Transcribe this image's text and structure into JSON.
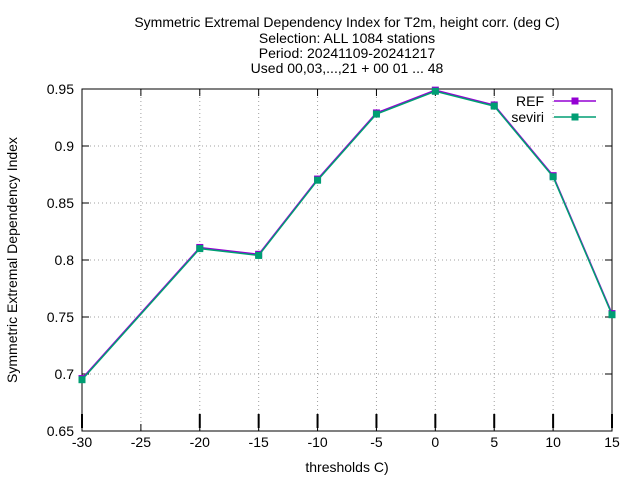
{
  "chart_data": {
    "type": "line",
    "title_lines": [
      "Symmetric Extremal Dependency Index  for T2m, height corr. (deg C)",
      "Selection: ALL    1084 stations",
      "Period: 20241109-20241217",
      "Used 00,03,...,21 + 00 01 ... 48"
    ],
    "xlabel": "thresholds C)",
    "ylabel": "Symmetric Extremal Dependency Index",
    "x": [
      -30,
      -20,
      -15,
      -10,
      -5,
      0,
      5,
      10,
      15
    ],
    "xlim": [
      -30,
      15
    ],
    "ylim": [
      0.65,
      0.95
    ],
    "xticks": [
      -30,
      -25,
      -20,
      -15,
      -10,
      -5,
      0,
      5,
      10,
      15
    ],
    "yticks": [
      0.65,
      0.7,
      0.75,
      0.8,
      0.85,
      0.9,
      0.95
    ],
    "grid": true,
    "legend_position": "top-right",
    "series": [
      {
        "name": "REF",
        "color": "#9400d3",
        "values": [
          0.696,
          0.811,
          0.805,
          0.871,
          0.929,
          0.949,
          0.936,
          0.874,
          0.753
        ]
      },
      {
        "name": "seviri",
        "color": "#009e73",
        "values": [
          0.695,
          0.81,
          0.804,
          0.87,
          0.928,
          0.948,
          0.935,
          0.873,
          0.752
        ]
      }
    ]
  }
}
